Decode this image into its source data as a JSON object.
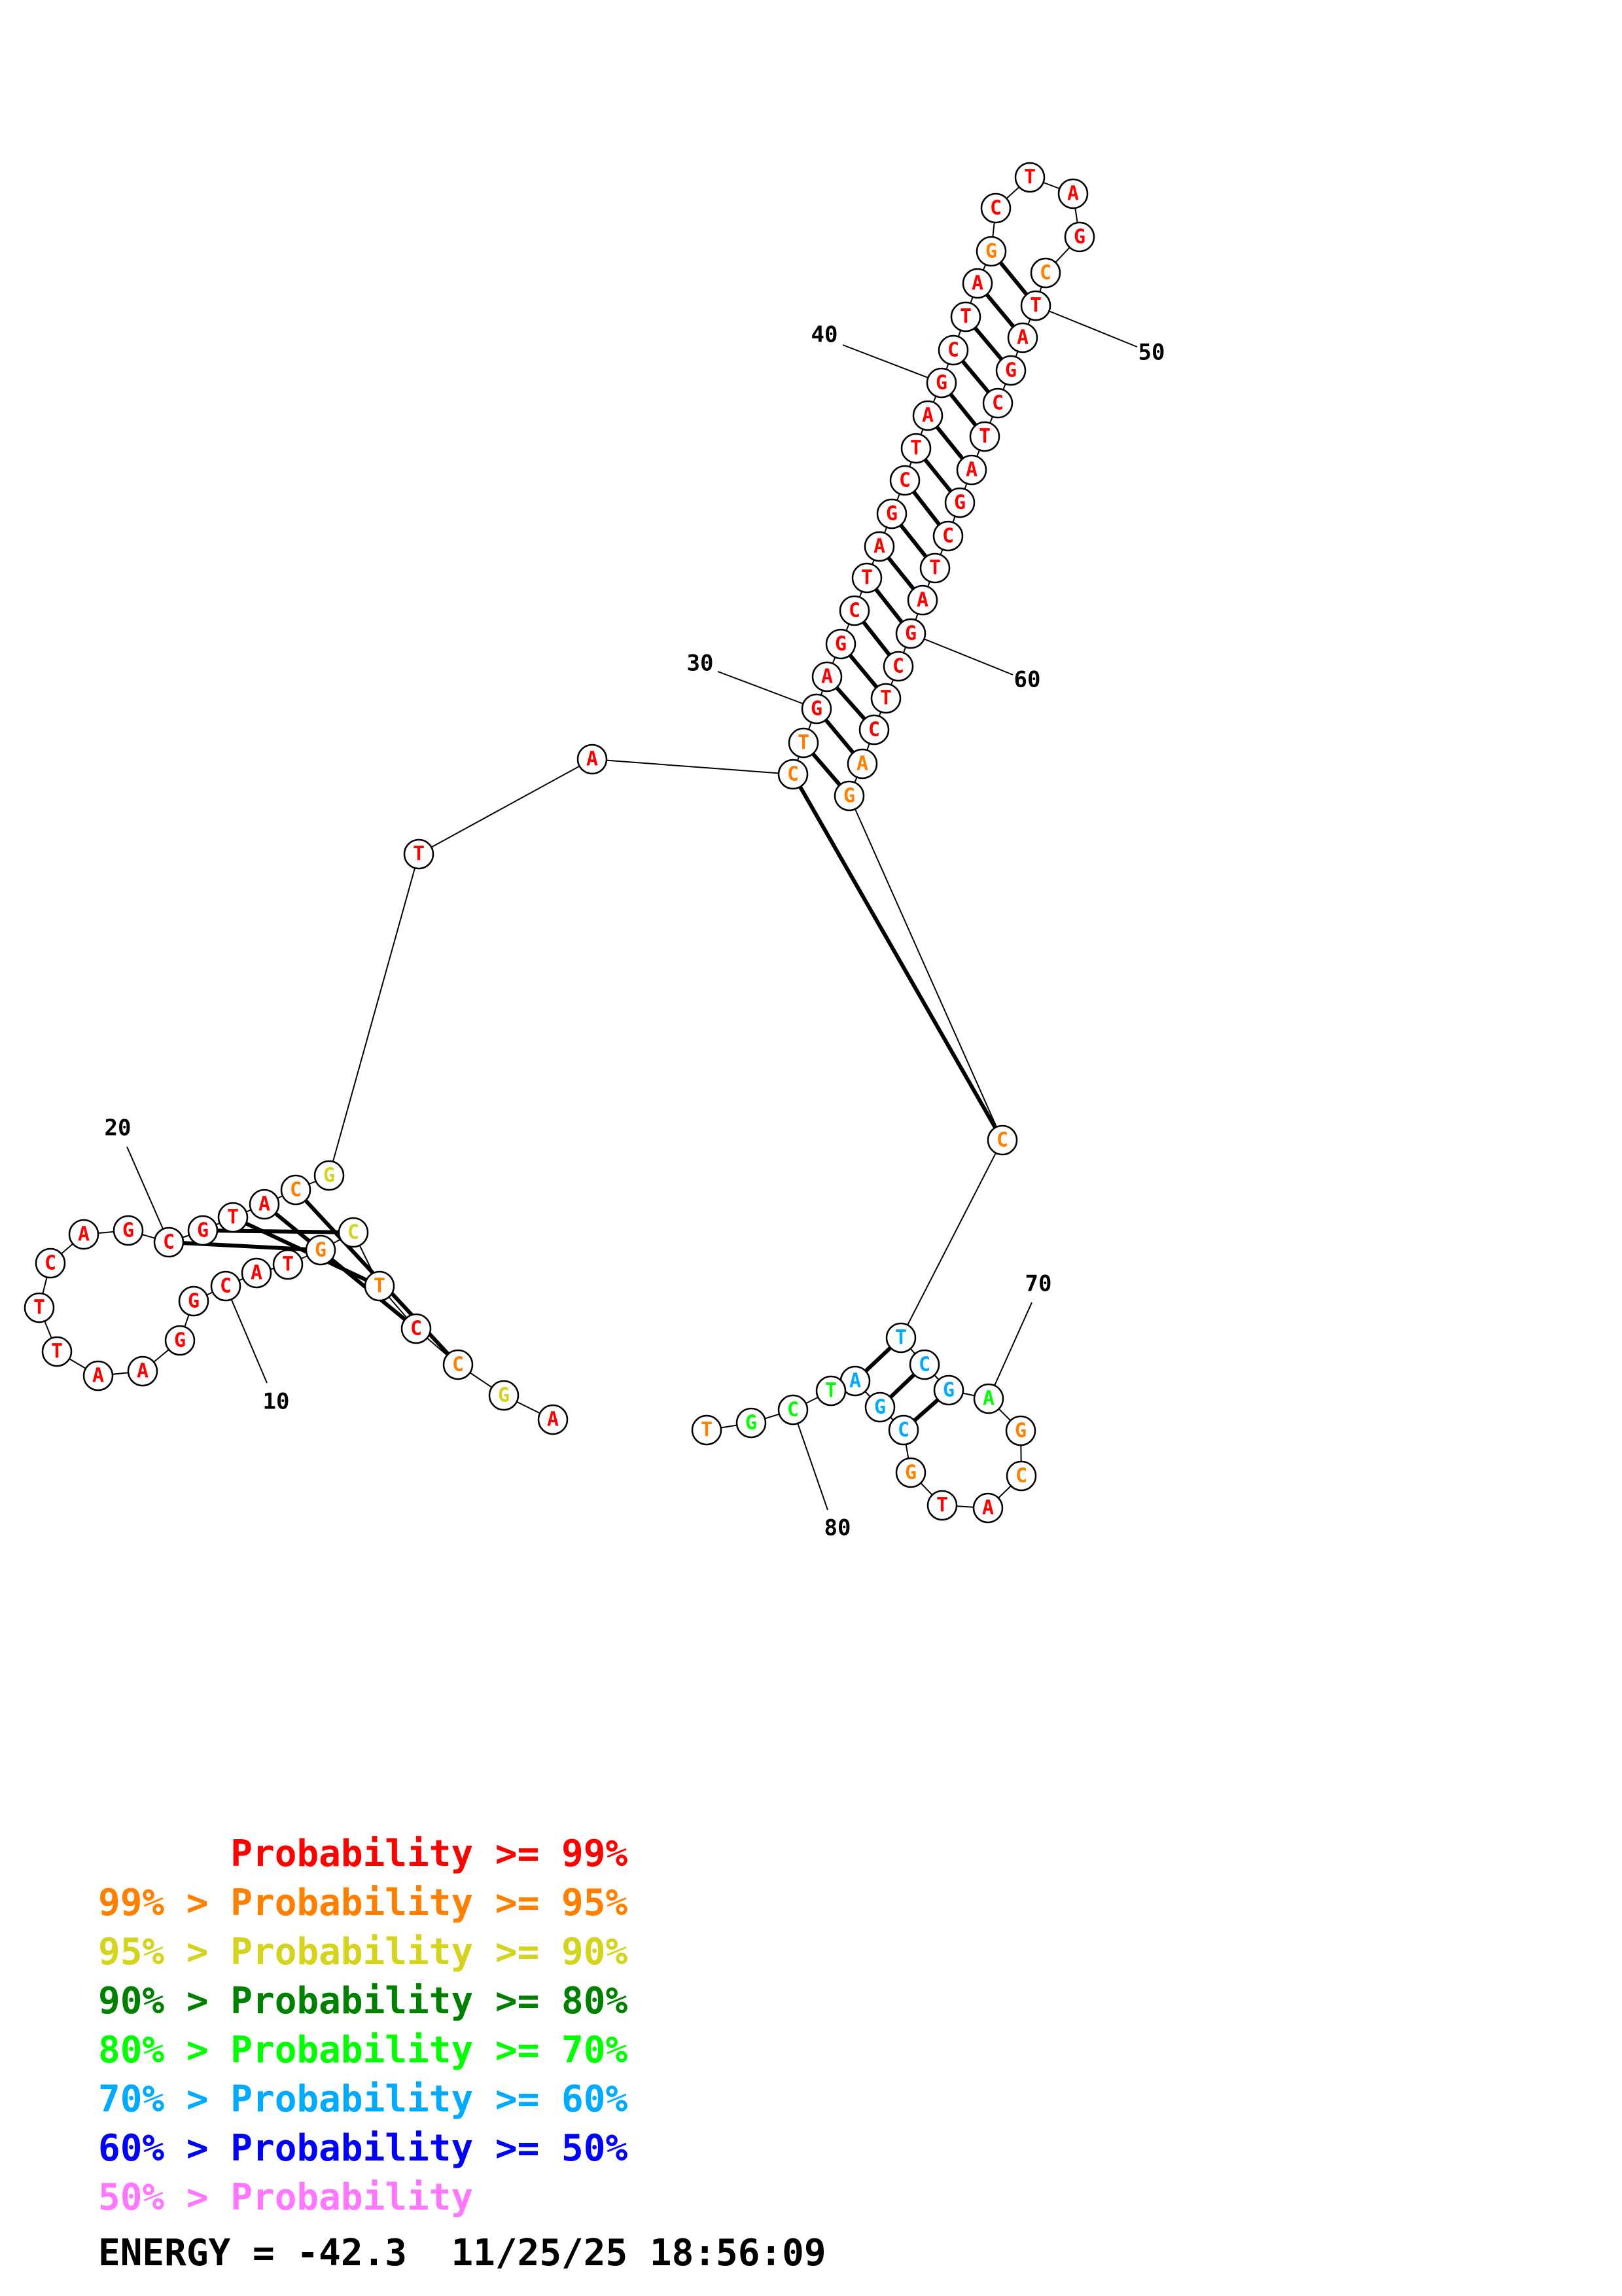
{
  "colors": {
    "p99": "#ff0000",
    "p95": "#ff8000",
    "p90": "#d4d41e",
    "p80": "#008000",
    "p70": "#00ff00",
    "p60": "#00aaff",
    "p50": "#0000ff",
    "plow": "#ff77ff"
  },
  "nucleotides": [
    {
      "n": 1,
      "base": "A",
      "c": "p99"
    },
    {
      "n": 2,
      "base": "G",
      "c": "p90"
    },
    {
      "n": 3,
      "base": "C",
      "c": "p95"
    },
    {
      "n": 4,
      "base": "C",
      "c": "p99"
    },
    {
      "n": 5,
      "base": "T",
      "c": "p95"
    },
    {
      "n": 6,
      "base": "C",
      "c": "p90"
    },
    {
      "n": 7,
      "base": "G",
      "c": "p95"
    },
    {
      "n": 8,
      "base": "T",
      "c": "p99"
    },
    {
      "n": 9,
      "base": "A",
      "c": "p99"
    },
    {
      "n": 10,
      "base": "C",
      "c": "p99"
    },
    {
      "n": 11,
      "base": "G",
      "c": "p99"
    },
    {
      "n": 12,
      "base": "G",
      "c": "p99"
    },
    {
      "n": 13,
      "base": "A",
      "c": "p99"
    },
    {
      "n": 14,
      "base": "A",
      "c": "p99"
    },
    {
      "n": 15,
      "base": "T",
      "c": "p99"
    },
    {
      "n": 16,
      "base": "T",
      "c": "p99"
    },
    {
      "n": 17,
      "base": "C",
      "c": "p99"
    },
    {
      "n": 18,
      "base": "A",
      "c": "p99"
    },
    {
      "n": 19,
      "base": "G",
      "c": "p99"
    },
    {
      "n": 20,
      "base": "C",
      "c": "p99"
    },
    {
      "n": 21,
      "base": "G",
      "c": "p99"
    },
    {
      "n": 22,
      "base": "T",
      "c": "p99"
    },
    {
      "n": 23,
      "base": "A",
      "c": "p99"
    },
    {
      "n": 24,
      "base": "C",
      "c": "p95"
    },
    {
      "n": 25,
      "base": "G",
      "c": "p90"
    },
    {
      "n": 26,
      "base": "T",
      "c": "p99"
    },
    {
      "n": 27,
      "base": "A",
      "c": "p99"
    },
    {
      "n": 28,
      "base": "C",
      "c": "p95"
    },
    {
      "n": 29,
      "base": "T",
      "c": "p95"
    },
    {
      "n": 30,
      "base": "G",
      "c": "p99"
    },
    {
      "n": 31,
      "base": "A",
      "c": "p99"
    },
    {
      "n": 32,
      "base": "G",
      "c": "p99"
    },
    {
      "n": 33,
      "base": "C",
      "c": "p99"
    },
    {
      "n": 34,
      "base": "T",
      "c": "p99"
    },
    {
      "n": 35,
      "base": "A",
      "c": "p99"
    },
    {
      "n": 36,
      "base": "G",
      "c": "p99"
    },
    {
      "n": 37,
      "base": "C",
      "c": "p99"
    },
    {
      "n": 38,
      "base": "T",
      "c": "p99"
    },
    {
      "n": 39,
      "base": "A",
      "c": "p99"
    },
    {
      "n": 40,
      "base": "G",
      "c": "p99"
    },
    {
      "n": 41,
      "base": "C",
      "c": "p99"
    },
    {
      "n": 42,
      "base": "T",
      "c": "p99"
    },
    {
      "n": 43,
      "base": "A",
      "c": "p99"
    },
    {
      "n": 44,
      "base": "G",
      "c": "p95"
    },
    {
      "n": 45,
      "base": "C",
      "c": "p99"
    },
    {
      "n": 46,
      "base": "T",
      "c": "p99"
    },
    {
      "n": 47,
      "base": "A",
      "c": "p99"
    },
    {
      "n": 48,
      "base": "G",
      "c": "p99"
    },
    {
      "n": 49,
      "base": "C",
      "c": "p95"
    },
    {
      "n": 50,
      "base": "T",
      "c": "p99"
    },
    {
      "n": 51,
      "base": "A",
      "c": "p99"
    },
    {
      "n": 52,
      "base": "G",
      "c": "p99"
    },
    {
      "n": 53,
      "base": "C",
      "c": "p99"
    },
    {
      "n": 54,
      "base": "T",
      "c": "p99"
    },
    {
      "n": 55,
      "base": "A",
      "c": "p99"
    },
    {
      "n": 56,
      "base": "G",
      "c": "p99"
    },
    {
      "n": 57,
      "base": "C",
      "c": "p99"
    },
    {
      "n": 58,
      "base": "T",
      "c": "p99"
    },
    {
      "n": 59,
      "base": "A",
      "c": "p99"
    },
    {
      "n": 60,
      "base": "G",
      "c": "p99"
    },
    {
      "n": 61,
      "base": "C",
      "c": "p99"
    },
    {
      "n": 62,
      "base": "T",
      "c": "p99"
    },
    {
      "n": 63,
      "base": "C",
      "c": "p99"
    },
    {
      "n": 64,
      "base": "A",
      "c": "p95"
    },
    {
      "n": 65,
      "base": "G",
      "c": "p95"
    },
    {
      "n": 66,
      "base": "C",
      "c": "p95"
    },
    {
      "n": 67,
      "base": "T",
      "c": "p60"
    },
    {
      "n": 68,
      "base": "C",
      "c": "p60"
    },
    {
      "n": 69,
      "base": "G",
      "c": "p60"
    },
    {
      "n": 70,
      "base": "A",
      "c": "p70"
    },
    {
      "n": 71,
      "base": "G",
      "c": "p95"
    },
    {
      "n": 72,
      "base": "C",
      "c": "p95"
    },
    {
      "n": 73,
      "base": "A",
      "c": "p99"
    },
    {
      "n": 74,
      "base": "T",
      "c": "p99"
    },
    {
      "n": 75,
      "base": "G",
      "c": "p95"
    },
    {
      "n": 76,
      "base": "C",
      "c": "p60"
    },
    {
      "n": 77,
      "base": "G",
      "c": "p60"
    },
    {
      "n": 78,
      "base": "A",
      "c": "p60"
    },
    {
      "n": 79,
      "base": "T",
      "c": "p70"
    },
    {
      "n": 80,
      "base": "C",
      "c": "p70"
    },
    {
      "n": 81,
      "base": "G",
      "c": "p70"
    },
    {
      "n": 82,
      "base": "T",
      "c": "p95"
    }
  ],
  "pairs": [
    [
      3,
      24
    ],
    [
      4,
      23
    ],
    [
      5,
      22
    ],
    [
      6,
      21
    ],
    [
      7,
      20
    ],
    [
      28,
      66
    ],
    [
      29,
      65
    ],
    [
      30,
      64
    ],
    [
      31,
      63
    ],
    [
      32,
      62
    ],
    [
      33,
      61
    ],
    [
      34,
      60
    ],
    [
      35,
      59
    ],
    [
      36,
      58
    ],
    [
      37,
      57
    ],
    [
      38,
      56
    ],
    [
      39,
      55
    ],
    [
      40,
      54
    ],
    [
      41,
      53
    ],
    [
      42,
      52
    ],
    [
      43,
      51
    ],
    [
      44,
      50
    ],
    [
      67,
      78
    ],
    [
      68,
      77
    ],
    [
      69,
      76
    ]
  ],
  "index_labels": [
    "10",
    "20",
    "30",
    "40",
    "50",
    "60",
    "70",
    "80"
  ],
  "legend": [
    {
      "prefix": "",
      "text": "Probability >= 99%",
      "color": "#ff0000"
    },
    {
      "prefix": "99% > ",
      "text": "Probability >= 95%",
      "color": "#ff8000"
    },
    {
      "prefix": "95% > ",
      "text": "Probability >= 90%",
      "color": "#d4d41e"
    },
    {
      "prefix": "90% > ",
      "text": "Probability >= 80%",
      "color": "#008000"
    },
    {
      "prefix": "80% > ",
      "text": "Probability >= 70%",
      "color": "#00ff00"
    },
    {
      "prefix": "70% > ",
      "text": "Probability >= 60%",
      "color": "#00aaff"
    },
    {
      "prefix": "60% > ",
      "text": "Probability >= 50%",
      "color": "#0000ff"
    },
    {
      "prefix": "50% > ",
      "text": "Probability",
      "color": "#ff77ff"
    }
  ],
  "energy_label": "ENERGY = -42.3",
  "timestamp": "11/25/25 18:56:09"
}
